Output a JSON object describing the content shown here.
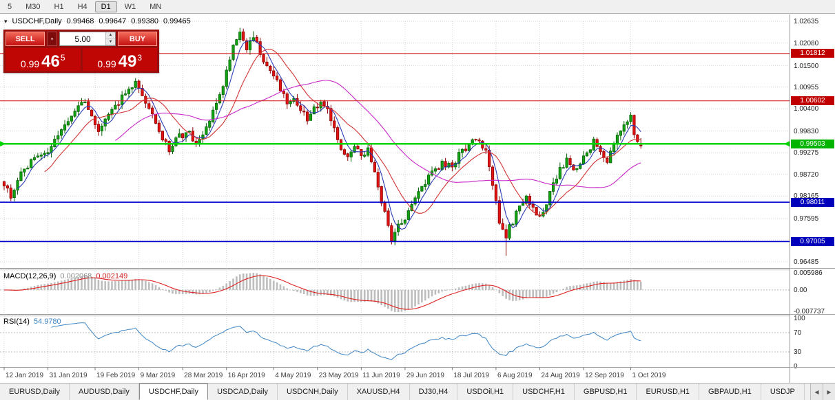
{
  "toolbar": {
    "periods": [
      {
        "label": "5",
        "active": false
      },
      {
        "label": "M30",
        "active": false
      },
      {
        "label": "H1",
        "active": false
      },
      {
        "label": "H4",
        "active": false
      },
      {
        "label": "D1",
        "active": true
      },
      {
        "label": "W1",
        "active": false
      },
      {
        "label": "MN",
        "active": false
      }
    ]
  },
  "chart": {
    "header": {
      "collapse_icon": "▾",
      "symbol": "USDCHF,Daily",
      "open": "0.99468",
      "high": "0.99647",
      "low": "0.99380",
      "close": "0.99465"
    },
    "trade_panel": {
      "sell_label": "SELL",
      "buy_label": "BUY",
      "volume": "5.00",
      "dropdown_icon": "▾",
      "up_icon": "▲",
      "down_icon": "▼",
      "sell_price": {
        "prefix": "0.99",
        "pips": "46",
        "pipette": "5"
      },
      "buy_price": {
        "prefix": "0.99",
        "pips": "49",
        "pipette": "3"
      }
    },
    "y_axis_ticks": [
      "1.02635",
      "1.02080",
      "1.01500",
      "1.00955",
      "1.00400",
      "0.99830",
      "0.99275",
      "0.98720",
      "0.98165",
      "0.97595",
      "0.97040",
      "0.96485"
    ],
    "levels": [
      {
        "value": 1.01812,
        "label": "1.01812",
        "color": "#d42222",
        "badge": "#c00000",
        "width": 1.2
      },
      {
        "value": 1.00602,
        "label": "1.00602",
        "color": "#d42222",
        "badge": "#c00000",
        "width": 1.2
      },
      {
        "value": 0.99503,
        "label": "0.99503",
        "color": "#00d400",
        "badge": "#00b400",
        "width": 2.4
      },
      {
        "value": 0.98011,
        "label": "0.98011",
        "color": "#0000cc",
        "badge": "#0000bb",
        "width": 1.6
      },
      {
        "value": 0.97005,
        "label": "0.97005",
        "color": "#0000cc",
        "badge": "#0000bb",
        "width": 1.6
      }
    ],
    "x_axis_labels": [
      "12 Jan 2019",
      "31 Jan 2019",
      "19 Feb 2019",
      "9 Mar 2019",
      "28 Mar 2019",
      "16 Apr 2019",
      "4 May 2019",
      "23 May 2019",
      "11 Jun 2019",
      "29 Jun 2019",
      "18 Jul 2019",
      "6 Aug 2019",
      "24 Aug 2019",
      "12 Sep 2019",
      "1 Oct 2019"
    ]
  },
  "macd": {
    "title": "MACD(12,26,9)",
    "value_main": "0.002068",
    "value_signal": "0.002149",
    "axis": [
      "0.005986",
      "0.00",
      "-0.007737"
    ],
    "fast": 12,
    "slow": 26,
    "signal": 9
  },
  "rsi": {
    "title": "RSI(14)",
    "value": "54.9780",
    "axis": [
      "100",
      "70",
      "30",
      "0"
    ],
    "period": 14,
    "levels": [
      70,
      30
    ]
  },
  "tabs": {
    "items": [
      {
        "label": "EURUSD,Daily",
        "active": false
      },
      {
        "label": "AUDUSD,Daily",
        "active": false
      },
      {
        "label": "USDCHF,Daily",
        "active": true
      },
      {
        "label": "USDCAD,Daily",
        "active": false
      },
      {
        "label": "USDCNH,Daily",
        "active": false
      },
      {
        "label": "XAUUSD,H4",
        "active": false
      },
      {
        "label": "DJ30,H4",
        "active": false
      },
      {
        "label": "USDOil,H1",
        "active": false
      },
      {
        "label": "USDCHF,H1",
        "active": false
      },
      {
        "label": "GBPUSD,H1",
        "active": false
      },
      {
        "label": "EURUSD,H1",
        "active": false
      },
      {
        "label": "GBPAUD,H1",
        "active": false
      },
      {
        "label": "USDJP",
        "active": false
      }
    ],
    "scroll_left": "◀",
    "scroll_right": "▶"
  },
  "chart_data": {
    "type": "candlestick",
    "symbol": "USDCHF",
    "timeframe": "Daily",
    "current": {
      "open": 0.99468,
      "high": 0.99647,
      "low": 0.9938,
      "close": 0.99465
    },
    "y_range": [
      0.96485,
      1.02635
    ],
    "n_candles": 190,
    "price_anchors": [
      [
        0,
        0.9848
      ],
      [
        2,
        0.9818
      ],
      [
        5,
        0.9872
      ],
      [
        9,
        0.9915
      ],
      [
        13,
        0.9928
      ],
      [
        16,
        0.9968
      ],
      [
        19,
        1.0002
      ],
      [
        22,
        1.0048
      ],
      [
        24,
        1.0062
      ],
      [
        26,
        1.0022
      ],
      [
        28,
        0.9988
      ],
      [
        31,
        1.0018
      ],
      [
        34,
        1.0058
      ],
      [
        37,
        1.0092
      ],
      [
        39,
        1.0112
      ],
      [
        41,
        1.008
      ],
      [
        44,
        1.0022
      ],
      [
        47,
        0.9958
      ],
      [
        49,
        0.9938
      ],
      [
        52,
        0.9968
      ],
      [
        55,
        0.9978
      ],
      [
        57,
        0.9942
      ],
      [
        60,
        0.999
      ],
      [
        63,
        1.0052
      ],
      [
        66,
        1.0132
      ],
      [
        68,
        1.0205
      ],
      [
        70,
        1.0232
      ],
      [
        72,
        1.0192
      ],
      [
        74,
        1.0222
      ],
      [
        76,
        1.0186
      ],
      [
        78,
        1.015
      ],
      [
        80,
        1.0128
      ],
      [
        82,
        1.0088
      ],
      [
        84,
        1.0052
      ],
      [
        86,
        1.0072
      ],
      [
        88,
        1.0038
      ],
      [
        90,
        1.0012
      ],
      [
        92,
        1.0042
      ],
      [
        94,
        1.0058
      ],
      [
        96,
        1.0032
      ],
      [
        98,
        0.9985
      ],
      [
        100,
        0.994
      ],
      [
        102,
        0.9912
      ],
      [
        104,
        0.9945
      ],
      [
        106,
        0.9915
      ],
      [
        108,
        0.9935
      ],
      [
        110,
        0.9878
      ],
      [
        112,
        0.9802
      ],
      [
        115,
        0.9702
      ],
      [
        117,
        0.9742
      ],
      [
        119,
        0.9762
      ],
      [
        121,
        0.9802
      ],
      [
        124,
        0.9842
      ],
      [
        127,
        0.9872
      ],
      [
        130,
        0.9902
      ],
      [
        133,
        0.9892
      ],
      [
        135,
        0.9922
      ],
      [
        138,
        0.9948
      ],
      [
        141,
        0.9962
      ],
      [
        143,
        0.993
      ],
      [
        145,
        0.984
      ],
      [
        147,
        0.9755
      ],
      [
        149,
        0.9718
      ],
      [
        151,
        0.9752
      ],
      [
        153,
        0.9788
      ],
      [
        155,
        0.9812
      ],
      [
        157,
        0.9788
      ],
      [
        159,
        0.9758
      ],
      [
        161,
        0.9802
      ],
      [
        163,
        0.9852
      ],
      [
        165,
        0.9882
      ],
      [
        167,
        0.9905
      ],
      [
        169,
        0.9878
      ],
      [
        171,
        0.9898
      ],
      [
        173,
        0.9928
      ],
      [
        175,
        0.9958
      ],
      [
        177,
        0.9938
      ],
      [
        179,
        0.9905
      ],
      [
        181,
        0.9942
      ],
      [
        183,
        0.9988
      ],
      [
        185,
        1.0012
      ],
      [
        186,
        1.0025
      ],
      [
        187,
        0.9982
      ],
      [
        188,
        0.9955
      ],
      [
        189,
        0.9946
      ]
    ],
    "wick_lows": [
      [
        115,
        0.9693
      ],
      [
        149,
        0.9664
      ]
    ],
    "wick_highs": [
      [
        70,
        1.0247
      ],
      [
        74,
        1.0238
      ]
    ],
    "moving_averages": [
      {
        "period": 5,
        "color": "#2a3cb4"
      },
      {
        "period": 13,
        "color": "#d23434"
      },
      {
        "period": 34,
        "color": "#c828c8"
      }
    ],
    "horizontal_levels": [
      1.01812,
      1.00602,
      0.99503,
      0.98011,
      0.97005
    ],
    "macd": {
      "fast": 12,
      "slow": 26,
      "signal": 9,
      "last_main": 0.002068,
      "last_signal": 0.002149,
      "scale": [
        -0.007737,
        0.005986
      ]
    },
    "rsi": {
      "period": 14,
      "last": 54.978,
      "levels": [
        70,
        30
      ]
    }
  }
}
